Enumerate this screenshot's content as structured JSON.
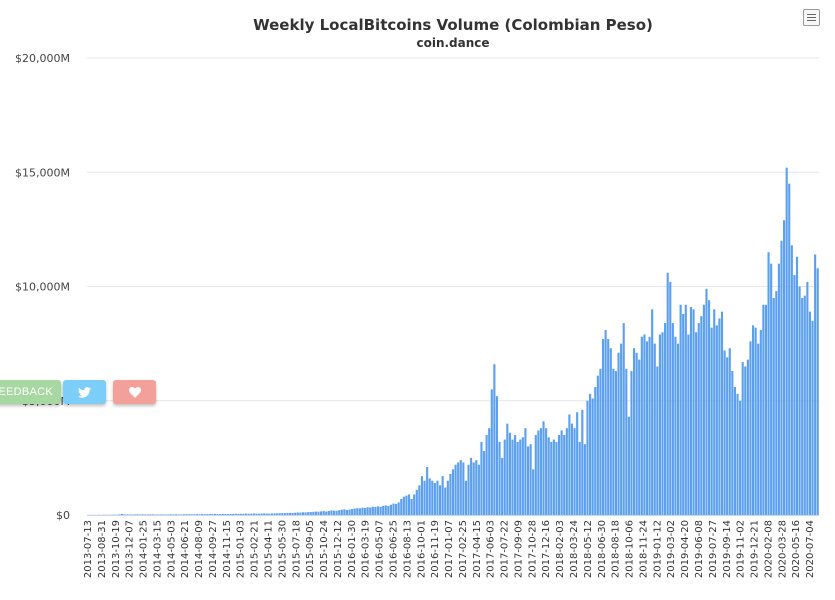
{
  "chart_data": {
    "type": "bar",
    "title": "Weekly LocalBitcoins Volume (Colombian Peso)",
    "subtitle": "coin.dance",
    "xlabel": "",
    "ylabel": "",
    "ylim": [
      0,
      20000
    ],
    "y_ticks": [
      0,
      5000,
      10000,
      15000,
      20000
    ],
    "y_tick_labels": [
      "$0",
      "$5,000M",
      "$10,000M",
      "$15,000M",
      "$20,000M"
    ],
    "x_start": "2013-07-13",
    "x_end": "2020-08-08",
    "x_tick_labels": [
      "2013-07-13",
      "2013-08-31",
      "2013-10-19",
      "2013-12-07",
      "2014-01-25",
      "2014-03-15",
      "2014-05-03",
      "2014-06-21",
      "2014-08-09",
      "2014-09-27",
      "2014-11-15",
      "2015-01-03",
      "2015-02-21",
      "2015-04-11",
      "2015-05-30",
      "2015-07-18",
      "2015-09-05",
      "2015-10-24",
      "2015-12-12",
      "2016-01-30",
      "2016-03-19",
      "2016-05-07",
      "2016-06-25",
      "2016-08-13",
      "2016-10-01",
      "2016-11-19",
      "2017-01-07",
      "2017-02-25",
      "2017-04-15",
      "2017-06-03",
      "2017-07-22",
      "2017-09-09",
      "2017-10-28",
      "2017-12-16",
      "2018-02-03",
      "2018-03-24",
      "2018-05-12",
      "2018-06-30",
      "2018-08-18",
      "2018-10-06",
      "2018-11-24",
      "2019-01-12",
      "2019-03-02",
      "2019-04-20",
      "2019-06-08",
      "2019-07-27",
      "2019-09-14",
      "2019-11-02",
      "2019-12-21",
      "2020-02-08",
      "2020-03-28",
      "2020-05-16",
      "2020-07-04"
    ],
    "values_unit": "millions COP",
    "values": [
      5,
      6,
      8,
      5,
      10,
      7,
      12,
      9,
      8,
      14,
      16,
      12,
      25,
      45,
      30,
      20,
      22,
      18,
      25,
      30,
      20,
      28,
      22,
      25,
      30,
      25,
      20,
      18,
      24,
      22,
      20,
      25,
      28,
      24,
      30,
      22,
      26,
      30,
      35,
      28,
      32,
      30,
      36,
      30,
      40,
      35,
      38,
      42,
      40,
      45,
      38,
      42,
      48,
      45,
      40,
      50,
      45,
      55,
      48,
      50,
      55,
      60,
      52,
      58,
      65,
      60,
      55,
      62,
      70,
      65,
      60,
      68,
      75,
      70,
      80,
      85,
      78,
      90,
      95,
      88,
      100,
      110,
      105,
      120,
      115,
      125,
      130,
      140,
      150,
      145,
      160,
      170,
      155,
      180,
      200,
      190,
      185,
      210,
      230,
      250,
      220,
      240,
      260,
      280,
      300,
      290,
      320,
      310,
      340,
      330,
      360,
      350,
      380,
      360,
      400,
      420,
      390,
      450,
      500,
      480,
      550,
      700,
      800,
      850,
      900,
      700,
      900,
      1100,
      1300,
      1700,
      1500,
      2100,
      1600,
      1500,
      1400,
      1500,
      1300,
      1700,
      1200,
      1500,
      1800,
      2000,
      2200,
      2300,
      2400,
      2300,
      1500,
      2200,
      2500,
      2300,
      2400,
      2200,
      3200,
      2800,
      3500,
      3800,
      5500,
      6600,
      5200,
      3200,
      2500,
      3300,
      4000,
      3600,
      3300,
      3500,
      3200,
      3300,
      3400,
      3800,
      3000,
      3100,
      2000,
      3500,
      3700,
      3800,
      4100,
      3800,
      3400,
      3200,
      3300,
      3200,
      3500,
      3700,
      3500,
      3800,
      4400,
      4000,
      3800,
      4500,
      3200,
      4600,
      3100,
      5000,
      5300,
      5100,
      5600,
      6100,
      6400,
      7700,
      8100,
      7700,
      7300,
      6400,
      6300,
      7100,
      7500,
      8400,
      6400,
      4300,
      6300,
      7300,
      7100,
      6800,
      7800,
      7900,
      7600,
      7800,
      9000,
      7500,
      6500,
      7900,
      8000,
      8400,
      10600,
      10200,
      8400,
      7800,
      7500,
      9200,
      8800,
      9200,
      7900,
      9100,
      9000,
      8000,
      8400,
      8700,
      9200,
      9900,
      9400,
      8200,
      9000,
      8300,
      8600,
      8900,
      7200,
      6900,
      7300,
      6300,
      5600,
      5300,
      5000,
      6700,
      6500,
      6800,
      7600,
      8300,
      8200,
      7500,
      8100,
      9200,
      9200,
      11500,
      11000,
      9500,
      9800,
      11000,
      12000,
      12900,
      15200,
      14500,
      11800,
      10500,
      11300,
      10000,
      9500,
      9600,
      10200,
      8900,
      8500,
      11400,
      10800
    ]
  },
  "toolbar": {
    "menu_icon": "hamburger-icon"
  },
  "side_buttons": {
    "feedback_label": "FEEDBACK",
    "twitter_icon": "twitter-bird-icon",
    "heart_icon": "heart-icon"
  },
  "colors": {
    "bar": "#5a9ff0",
    "bar_edge": "#4a8fe6",
    "title": "#333333",
    "grid": "#e6e6e6",
    "feedback": "#a8d8a2",
    "twitter": "#7ccdf7",
    "heart": "#f4a09a"
  }
}
